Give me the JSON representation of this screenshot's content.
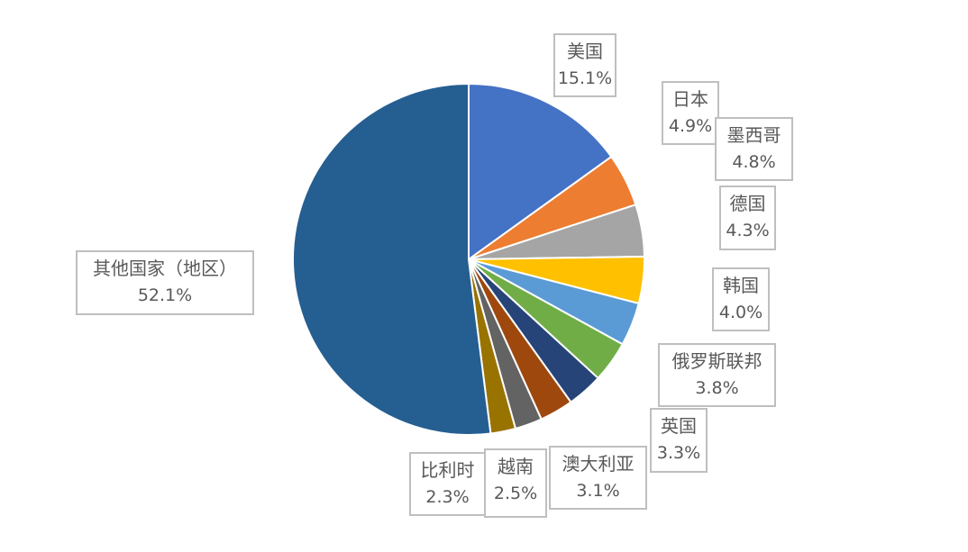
{
  "chart_data": {
    "type": "pie",
    "start_angle_deg": 0,
    "direction": "clockwise",
    "slices": [
      {
        "label": "美国",
        "value": 15.1,
        "display": "15.1%",
        "color": "#4472C4"
      },
      {
        "label": "日本",
        "value": 4.9,
        "display": "4.9%",
        "color": "#ED7D31"
      },
      {
        "label": "墨西哥",
        "value": 4.8,
        "display": "4.8%",
        "color": "#A5A5A5"
      },
      {
        "label": "德国",
        "value": 4.3,
        "display": "4.3%",
        "color": "#FFC000"
      },
      {
        "label": "韩国",
        "value": 4.0,
        "display": "4.0%",
        "color": "#5B9BD5"
      },
      {
        "label": "俄罗斯联邦",
        "value": 3.8,
        "display": "3.8%",
        "color": "#70AD47"
      },
      {
        "label": "英国",
        "value": 3.3,
        "display": "3.3%",
        "color": "#264478"
      },
      {
        "label": "澳大利亚",
        "value": 3.1,
        "display": "3.1%",
        "color": "#9E480E"
      },
      {
        "label": "越南",
        "value": 2.5,
        "display": "2.5%",
        "color": "#636363"
      },
      {
        "label": "比利时",
        "value": 2.3,
        "display": "2.3%",
        "color": "#997300"
      },
      {
        "label": "其他国家（地区）",
        "value": 52.1,
        "display": "52.1%",
        "color": "#255E91"
      }
    ]
  }
}
